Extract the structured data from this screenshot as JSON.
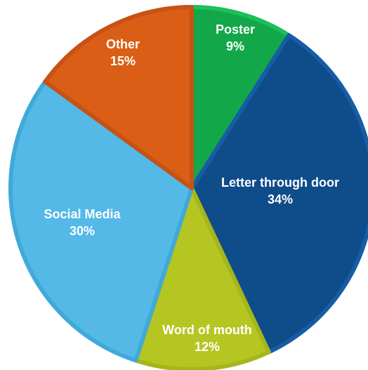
{
  "chart_data": {
    "type": "pie",
    "title": "",
    "slices": [
      {
        "label": "Poster",
        "value": 9,
        "value_label": "9%",
        "color": "#12A84A",
        "border": "#1DBF58"
      },
      {
        "label": "Letter through door",
        "value": 34,
        "value_label": "34%",
        "color": "#0E4C8A",
        "border": "#175CA6"
      },
      {
        "label": "Word of mouth",
        "value": 12,
        "value_label": "12%",
        "color": "#B5C521",
        "border": "#A5B61C"
      },
      {
        "label": "Social Media",
        "value": 30,
        "value_label": "30%",
        "color": "#54B9E7",
        "border": "#41A9D9"
      },
      {
        "label": "Other",
        "value": 15,
        "value_label": "15%",
        "color": "#DA5E16",
        "border": "#C65215"
      }
    ],
    "start_angle_deg": 0,
    "direction": "clockwise",
    "legend": "none"
  }
}
